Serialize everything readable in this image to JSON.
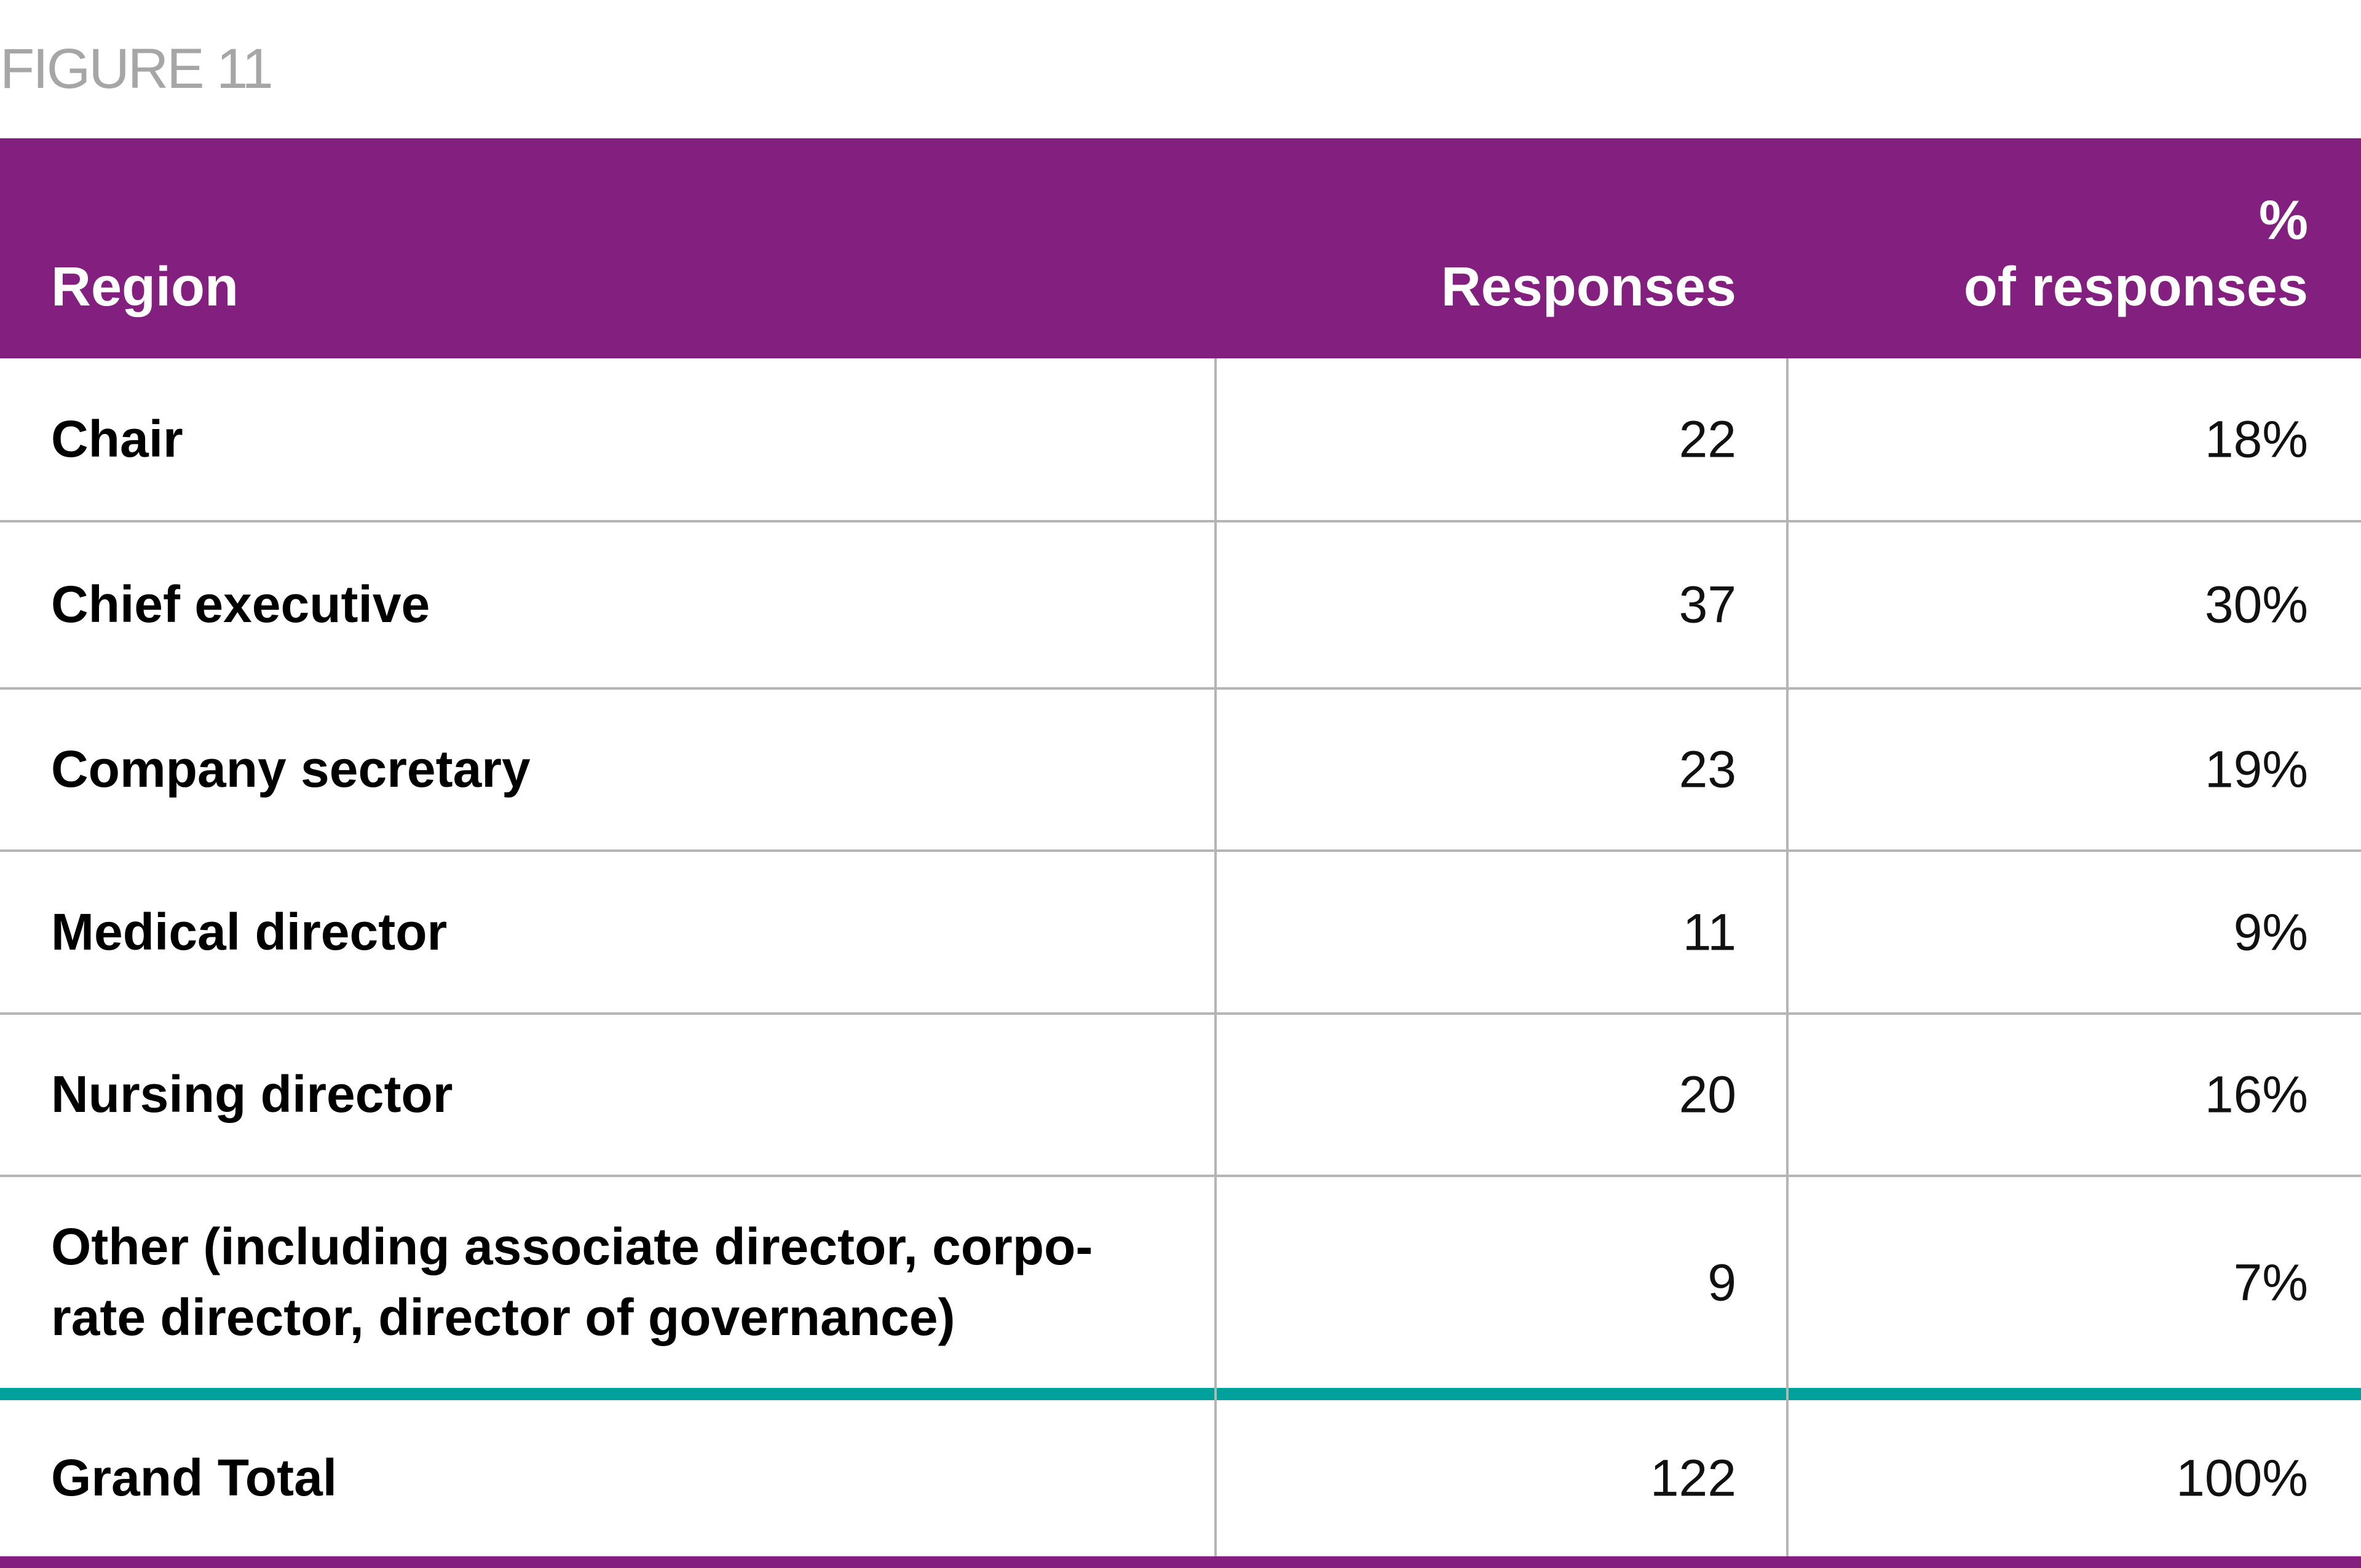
{
  "figure_title": "FIGURE 11",
  "header": {
    "region": "Region",
    "responses": "Responses",
    "pct_line1": "%",
    "pct_line2": "of responses"
  },
  "rows": [
    {
      "label": "Chair",
      "responses": "22",
      "pct": "18%"
    },
    {
      "label": "Chief executive",
      "responses": "37",
      "pct": "30%"
    },
    {
      "label": "Company secretary",
      "responses": "23",
      "pct": "19%"
    },
    {
      "label": "Medical director",
      "responses": "11",
      "pct": "9%"
    },
    {
      "label": "Nursing director",
      "responses": "20",
      "pct": "16%"
    },
    {
      "label": "Other (including associate director, corpo-rate director, director of governance)",
      "label_line1": "Other (including associate director, corpo-",
      "label_line2": "rate director, director of governance)",
      "responses": "9",
      "pct": "7%"
    }
  ],
  "total": {
    "label": "Grand Total",
    "responses": "122",
    "pct": "100%"
  },
  "colors": {
    "header": "#831f7e",
    "total_rule": "#00a19a",
    "grid": "#b5b5b5"
  }
}
